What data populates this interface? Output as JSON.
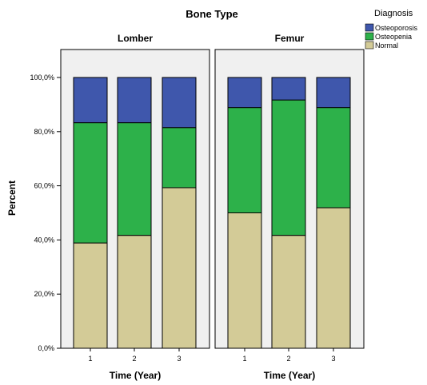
{
  "chart_data": {
    "type": "bar",
    "stacked": true,
    "title": "Bone Type",
    "ylabel": "Percent",
    "ylim": [
      0,
      100
    ],
    "yticks": [
      "0,0%",
      "20,0%",
      "40,0%",
      "60,0%",
      "80,0%",
      "100,0%"
    ],
    "legend": {
      "title": "Diagnosis",
      "placement": "top-right",
      "entries": [
        "Osteoporosis",
        "Osteopenia",
        "Normal"
      ]
    },
    "colors": {
      "Osteoporosis": "#3f57ac",
      "Osteopenia": "#2db14a",
      "Normal": "#d3cb97",
      "panel_background": "#f0f0f0"
    },
    "grid": false,
    "panels": [
      {
        "name": "Lomber",
        "xlabel": "Time (Year)",
        "categories": [
          "1",
          "2",
          "3"
        ],
        "series": [
          {
            "name": "Normal",
            "values": [
              38.9,
              41.7,
              59.3
            ]
          },
          {
            "name": "Osteopenia",
            "values": [
              44.4,
              41.6,
              22.2
            ]
          },
          {
            "name": "Osteoporosis",
            "values": [
              16.7,
              16.7,
              18.5
            ]
          }
        ]
      },
      {
        "name": "Femur",
        "xlabel": "Time (Year)",
        "categories": [
          "1",
          "2",
          "3"
        ],
        "series": [
          {
            "name": "Normal",
            "values": [
              50.0,
              41.7,
              51.9
            ]
          },
          {
            "name": "Osteopenia",
            "values": [
              38.9,
              50.0,
              37.0
            ]
          },
          {
            "name": "Osteoporosis",
            "values": [
              11.1,
              8.3,
              11.1
            ]
          }
        ]
      }
    ]
  }
}
